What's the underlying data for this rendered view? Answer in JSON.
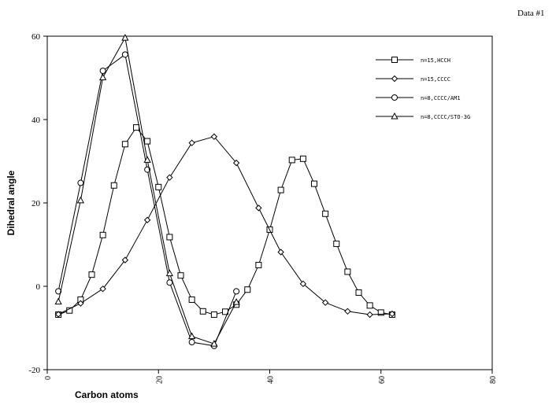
{
  "page": {
    "title": "Data #1"
  },
  "chart_data": {
    "type": "line",
    "title": "",
    "xlabel": "Carbon atoms",
    "ylabel": "Dihedral angle",
    "xlim": [
      0,
      80
    ],
    "ylim": [
      -20,
      60
    ],
    "x_ticks": [
      0,
      20,
      40,
      60,
      80
    ],
    "y_ticks": [
      -20,
      0,
      20,
      40,
      60
    ],
    "grid": false,
    "legend_position": "top-right",
    "series": [
      {
        "name": "n=15,HCCH",
        "marker": "square",
        "x": [
          2,
          4,
          6,
          8,
          10,
          12,
          14,
          16,
          18,
          20,
          22,
          24,
          26,
          28,
          30,
          32,
          34,
          36,
          38,
          40,
          42,
          44,
          46,
          48,
          50,
          52,
          54,
          56,
          58,
          60,
          62
        ],
        "y": [
          -6.8,
          -5.8,
          -3.2,
          2.8,
          12.3,
          24.2,
          34.1,
          38.1,
          34.8,
          23.8,
          11.8,
          2.6,
          -3.2,
          -6.0,
          -6.8,
          -6.1,
          -4.4,
          -0.8,
          5.1,
          13.6,
          23.1,
          30.3,
          30.6,
          24.6,
          17.4,
          10.2,
          3.5,
          -1.5,
          -4.6,
          -6.3,
          -6.8
        ]
      },
      {
        "name": "n=15,CCCC",
        "marker": "diamond",
        "x": [
          2,
          6,
          10,
          14,
          18,
          22,
          26,
          30,
          34,
          38,
          42,
          46,
          50,
          54,
          58,
          62
        ],
        "y": [
          -6.7,
          -4.1,
          -0.6,
          6.3,
          15.9,
          26.1,
          34.4,
          35.9,
          29.6,
          18.8,
          8.2,
          0.6,
          -3.9,
          -6.0,
          -6.8,
          -6.6
        ]
      },
      {
        "name": "n=8,CCCC/AM1",
        "marker": "circle",
        "x": [
          2,
          6,
          10,
          14,
          18,
          22,
          26,
          30,
          34
        ],
        "y": [
          -1.2,
          24.8,
          51.7,
          55.6,
          28.0,
          0.9,
          -13.4,
          -14.3,
          -1.2
        ]
      },
      {
        "name": "n=8,CCCC/STO-3G",
        "marker": "triangle",
        "x": [
          2,
          6,
          10,
          14,
          18,
          22,
          26,
          30,
          34
        ],
        "y": [
          -3.7,
          20.6,
          50.1,
          59.6,
          30.3,
          3.1,
          -12.0,
          -13.8,
          -3.8
        ]
      }
    ]
  }
}
